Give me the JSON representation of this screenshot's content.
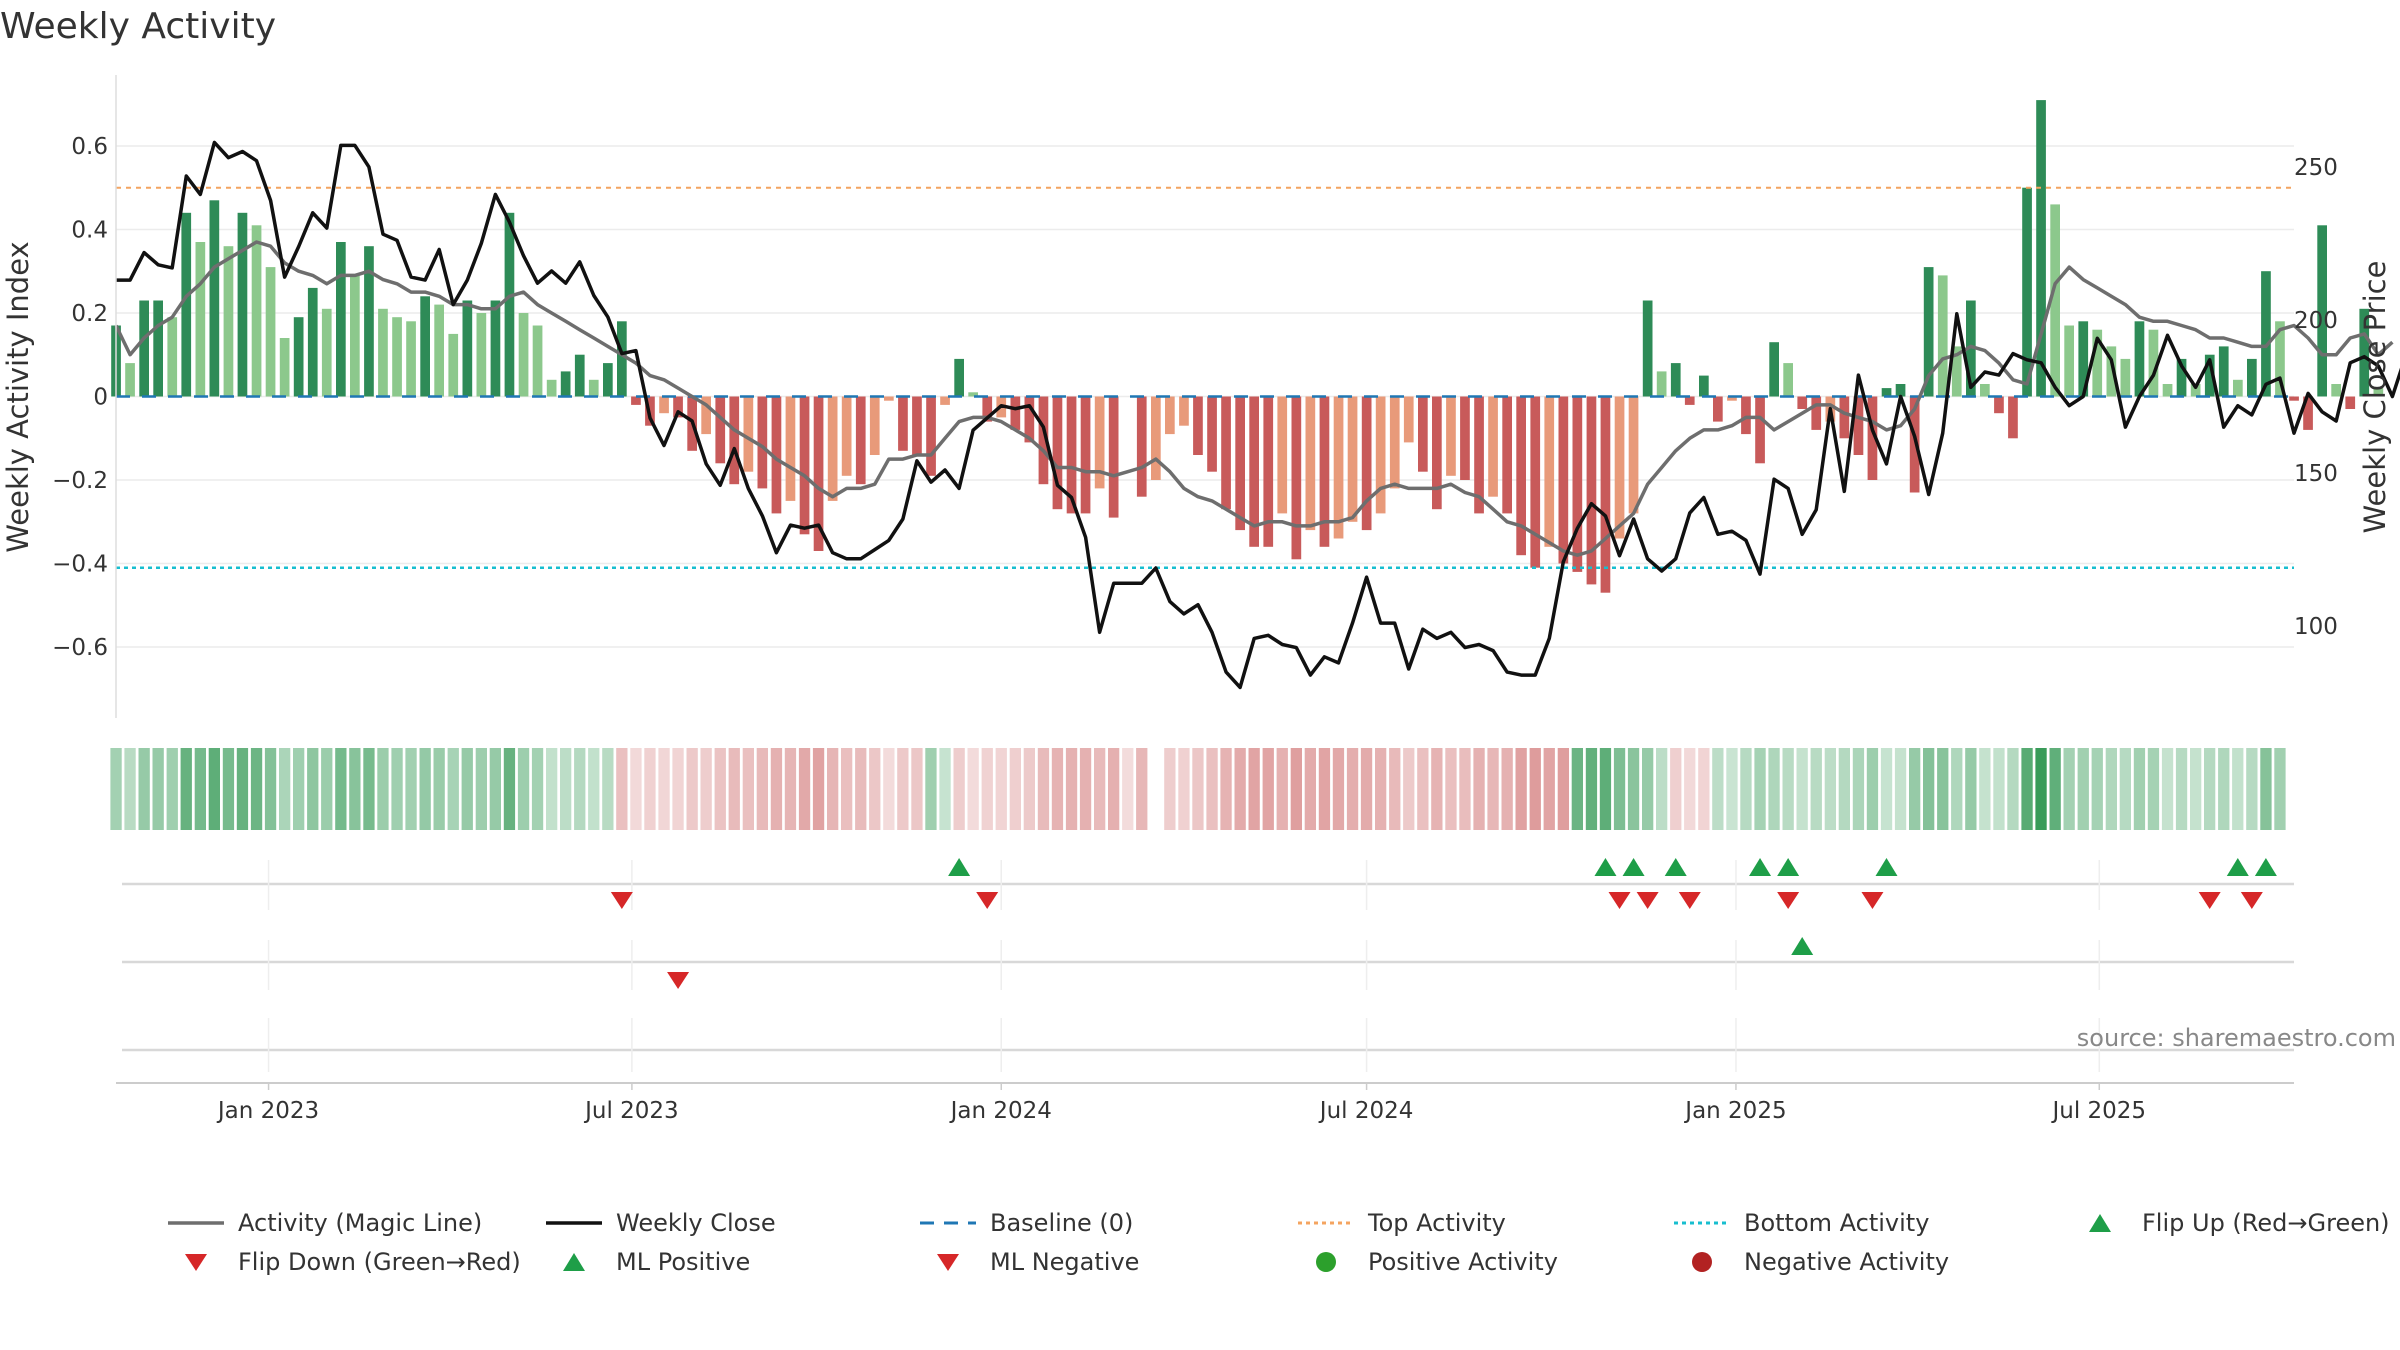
{
  "chart_data": {
    "type": "bar",
    "title": "Weekly Activity",
    "ylabel_left": "Weekly Activity Index",
    "ylabel_right": "Weekly Close Price",
    "ylim_left": [
      -0.77,
      0.77
    ],
    "ylim_right": [
      70,
      280
    ],
    "yticks_left": [
      0.6,
      0.4,
      0.2,
      0,
      -0.2,
      -0.4,
      -0.6
    ],
    "yticks_left_labels": [
      "0.6",
      "0.4",
      "0.2",
      "0",
      "−0.2",
      "−0.4",
      "−0.6"
    ],
    "yticks_right": [
      250,
      200,
      150,
      100
    ],
    "yticks_right_labels": [
      "250",
      "200",
      "150",
      "100"
    ],
    "xlim": [
      "2022-10-17",
      "2025-10-06"
    ],
    "xticks": [
      {
        "date": "2023-01-01",
        "label": "Jan 2023"
      },
      {
        "date": "2023-07-01",
        "label": "Jul 2023"
      },
      {
        "date": "2024-01-01",
        "label": "Jan 2024"
      },
      {
        "date": "2024-07-01",
        "label": "Jul 2024"
      },
      {
        "date": "2025-01-01",
        "label": "Jan 2025"
      },
      {
        "date": "2025-07-01",
        "label": "Jul 2025"
      }
    ],
    "start_week": "2022-10-17",
    "activity": [
      0.17,
      0.08,
      0.23,
      0.23,
      0.19,
      0.44,
      0.37,
      0.47,
      0.36,
      0.44,
      0.41,
      0.31,
      0.14,
      0.19,
      0.26,
      0.21,
      0.37,
      0.29,
      0.36,
      0.21,
      0.19,
      0.18,
      0.24,
      0.22,
      0.15,
      0.23,
      0.2,
      0.23,
      0.44,
      0.2,
      0.17,
      0.04,
      0.06,
      0.1,
      0.04,
      0.08,
      0.18,
      -0.02,
      -0.07,
      -0.04,
      -0.05,
      -0.13,
      -0.09,
      -0.16,
      -0.21,
      -0.18,
      -0.22,
      -0.28,
      -0.25,
      -0.33,
      -0.37,
      -0.25,
      -0.19,
      -0.21,
      -0.14,
      -0.01,
      -0.13,
      -0.14,
      -0.19,
      -0.02,
      0.09,
      0.01,
      -0.06,
      -0.05,
      -0.08,
      -0.11,
      -0.21,
      -0.27,
      -0.28,
      -0.28,
      -0.22,
      -0.29,
      0,
      -0.24,
      -0.2,
      -0.09,
      -0.07,
      -0.14,
      -0.18,
      -0.27,
      -0.32,
      -0.36,
      -0.36,
      -0.28,
      -0.39,
      -0.32,
      -0.36,
      -0.34,
      -0.3,
      -0.32,
      -0.28,
      -0.22,
      -0.11,
      -0.18,
      -0.27,
      -0.19,
      -0.2,
      -0.28,
      -0.24,
      -0.28,
      -0.38,
      -0.41,
      -0.36,
      -0.4,
      -0.42,
      -0.45,
      -0.47,
      -0.34,
      -0.28,
      0.23,
      0.06,
      0.08,
      -0.02,
      0.05,
      -0.06,
      -0.01,
      -0.09,
      -0.16,
      0.13,
      0.08,
      -0.03,
      -0.08,
      -0.06,
      -0.1,
      -0.14,
      -0.2,
      0.02,
      0.03,
      -0.23,
      0.31,
      0.29,
      0.12,
      0.23,
      0.03,
      -0.04,
      -0.1,
      0.5,
      0.71,
      0.46,
      0.17,
      0.18,
      0.16,
      0.12,
      0.09,
      0.18,
      0.16,
      0.03,
      0.09,
      0.03,
      0.1,
      0.12,
      0.04,
      0.09,
      0.3,
      0.18,
      -0.01,
      -0.08,
      0.41,
      0.03,
      -0.03,
      0.21,
      0.02
    ],
    "magic_line": [
      0.17,
      0.1,
      0.14,
      0.17,
      0.19,
      0.24,
      0.27,
      0.31,
      0.33,
      0.35,
      0.37,
      0.36,
      0.32,
      0.3,
      0.29,
      0.27,
      0.29,
      0.29,
      0.3,
      0.28,
      0.27,
      0.25,
      0.25,
      0.24,
      0.22,
      0.22,
      0.21,
      0.21,
      0.24,
      0.25,
      0.22,
      0.2,
      0.18,
      0.16,
      0.14,
      0.12,
      0.1,
      0.08,
      0.05,
      0.04,
      0.02,
      0.0,
      -0.02,
      -0.05,
      -0.08,
      -0.1,
      -0.12,
      -0.15,
      -0.17,
      -0.19,
      -0.22,
      -0.24,
      -0.22,
      -0.22,
      -0.21,
      -0.15,
      -0.15,
      -0.14,
      -0.14,
      -0.1,
      -0.06,
      -0.05,
      -0.05,
      -0.06,
      -0.08,
      -0.1,
      -0.13,
      -0.17,
      -0.17,
      -0.18,
      -0.18,
      -0.19,
      -0.18,
      -0.17,
      -0.15,
      -0.18,
      -0.22,
      -0.24,
      -0.25,
      -0.27,
      -0.29,
      -0.31,
      -0.3,
      -0.3,
      -0.31,
      -0.31,
      -0.3,
      -0.3,
      -0.29,
      -0.25,
      -0.22,
      -0.21,
      -0.22,
      -0.22,
      -0.22,
      -0.21,
      -0.23,
      -0.24,
      -0.27,
      -0.3,
      -0.31,
      -0.33,
      -0.35,
      -0.37,
      -0.38,
      -0.37,
      -0.34,
      -0.31,
      -0.28,
      -0.21,
      -0.17,
      -0.13,
      -0.1,
      -0.08,
      -0.08,
      -0.07,
      -0.05,
      -0.05,
      -0.08,
      -0.06,
      -0.04,
      -0.02,
      -0.02,
      -0.04,
      -0.05,
      -0.06,
      -0.08,
      -0.07,
      -0.03,
      0.05,
      0.09,
      0.1,
      0.12,
      0.11,
      0.08,
      0.04,
      0.03,
      0.15,
      0.27,
      0.31,
      0.28,
      0.26,
      0.24,
      0.22,
      0.19,
      0.18,
      0.18,
      0.17,
      0.16,
      0.14,
      0.14,
      0.13,
      0.12,
      0.12,
      0.16,
      0.17,
      0.14,
      0.1,
      0.1,
      0.14,
      0.15,
      0.1,
      0.13
    ],
    "weekly_close": [
      213,
      213,
      222,
      218,
      217,
      247,
      241,
      258,
      253,
      255,
      252,
      239,
      214,
      224,
      235,
      230,
      257,
      257,
      250,
      228,
      226,
      214,
      213,
      223,
      205,
      213,
      225,
      241,
      232,
      221,
      212,
      216,
      212,
      219,
      208,
      201,
      189,
      190,
      168,
      159,
      170,
      167,
      153,
      146,
      158,
      145,
      136,
      124,
      133,
      132,
      133,
      124,
      122,
      122,
      125,
      128,
      135,
      154,
      147,
      151,
      145,
      164,
      168,
      172,
      171,
      172,
      165,
      146,
      142,
      129,
      98,
      114,
      114,
      114,
      119,
      108,
      104,
      107,
      98,
      85,
      80,
      96,
      97,
      94,
      93,
      84,
      90,
      88,
      101,
      116,
      101,
      101,
      86,
      99,
      96,
      98,
      93,
      94,
      92,
      85,
      84,
      84,
      96,
      121,
      132,
      140,
      136,
      123,
      135,
      122,
      118,
      122,
      137,
      142,
      130,
      131,
      128,
      117,
      148,
      145,
      130,
      138,
      171,
      144,
      182,
      164,
      153,
      175,
      162,
      143,
      163,
      202,
      178,
      183,
      182,
      189,
      187,
      186,
      178,
      172,
      175,
      194,
      187,
      165,
      175,
      182,
      195,
      185,
      178,
      187,
      165,
      172,
      169,
      179,
      181,
      163,
      176,
      170,
      167,
      186,
      188,
      185,
      175,
      189,
      184
    ],
    "heat_bands": [
      {
        "start": "2022-10-17",
        "end": "2023-06-19",
        "tone": "green"
      },
      {
        "start": "2023-06-26",
        "end": "2023-11-20",
        "tone": "red"
      },
      {
        "start": "2023-11-27",
        "end": "2023-12-04",
        "tone": "green"
      },
      {
        "start": "2023-12-11",
        "end": "2024-03-11",
        "tone": "red"
      },
      {
        "start": "2024-03-25",
        "end": "2024-10-07",
        "tone": "red"
      },
      {
        "start": "2024-10-14",
        "end": "2024-11-25",
        "tone": "green"
      },
      {
        "start": "2024-12-02",
        "end": "2024-12-16",
        "tone": "red"
      },
      {
        "start": "2024-12-23",
        "end": "2025-01-20",
        "tone": "green"
      },
      {
        "start": "2025-01-27",
        "end": "2025-09-29",
        "tone": "green"
      }
    ],
    "flip_up": [
      "2023-12-11",
      "2024-10-28",
      "2024-11-11",
      "2024-12-02",
      "2025-01-13",
      "2025-01-27",
      "2025-03-17",
      "2025-09-08",
      "2025-09-22"
    ],
    "flip_down": [
      "2023-06-26",
      "2023-12-25",
      "2024-11-04",
      "2024-11-18",
      "2024-12-09",
      "2025-01-27",
      "2025-03-10",
      "2025-08-25",
      "2025-09-15"
    ],
    "ml_positive": [
      "2025-02-03"
    ],
    "ml_negative": [
      "2023-07-24"
    ],
    "top_activity": 0.5,
    "bottom_activity": -0.41,
    "baseline": 0,
    "legend": [
      {
        "label": "Activity (Magic Line)",
        "style": "line",
        "color": "#6e6e6e"
      },
      {
        "label": "Weekly Close",
        "style": "line",
        "color": "#111111"
      },
      {
        "label": "Baseline (0)",
        "style": "dash",
        "color": "#1f77b4"
      },
      {
        "label": "Top Activity",
        "style": "dot",
        "color": "#f4a460"
      },
      {
        "label": "Bottom Activity",
        "style": "dot",
        "color": "#17becf"
      },
      {
        "label": "Flip Up (Red→Green)",
        "style": "tri-up",
        "color": "#1e9e48"
      },
      {
        "label": "Flip Down (Green→Red)",
        "style": "tri-down",
        "color": "#d62728"
      },
      {
        "label": "ML Positive",
        "style": "tri-up",
        "color": "#1e9e48"
      },
      {
        "label": "ML Negative",
        "style": "tri-down",
        "color": "#d62728"
      },
      {
        "label": "Positive Activity",
        "style": "circle",
        "color": "#2ca02c"
      },
      {
        "label": "Negative Activity",
        "style": "circle",
        "color": "#b22222"
      }
    ],
    "source": "source: sharemaestro.com"
  },
  "colors": {
    "pos_dark": "#2e8b57",
    "pos_light": "#8cc88c",
    "neg_dark": "#c85a5a",
    "neg_light": "#e89a7a",
    "magic": "#6e6e6e",
    "close": "#111111",
    "baseline": "#1f77b4",
    "top": "#f4a460",
    "bottom": "#17becf",
    "up": "#1e9e48",
    "down": "#d62728"
  }
}
